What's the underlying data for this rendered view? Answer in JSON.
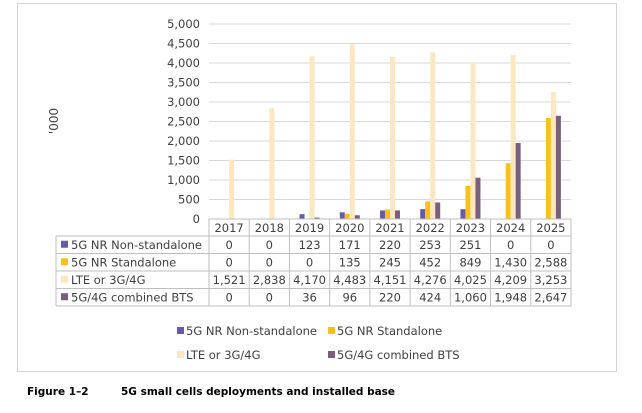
{
  "chart_data": {
    "type": "bar",
    "ylabel": "'000",
    "ylim": [
      0,
      5000
    ],
    "yticks": [
      "0",
      "500",
      "1,000",
      "1,500",
      "2,000",
      "2,500",
      "3,000",
      "3,500",
      "4,000",
      "4,500",
      "5,000"
    ],
    "categories": [
      "2017",
      "2018",
      "2019",
      "2020",
      "2021",
      "2022",
      "2023",
      "2024",
      "2025"
    ],
    "series": [
      {
        "name": "5G NR Non-standalone",
        "color": "#6b5aa3",
        "values": [
          0,
          0,
          123,
          171,
          220,
          253,
          251,
          0,
          0
        ],
        "labels": [
          "0",
          "0",
          "123",
          "171",
          "220",
          "253",
          "251",
          "0",
          "0"
        ]
      },
      {
        "name": "5G NR Standalone",
        "color": "#f9c119",
        "values": [
          0,
          0,
          0,
          135,
          245,
          452,
          849,
          1430,
          2588
        ],
        "labels": [
          "0",
          "0",
          "0",
          "135",
          "245",
          "452",
          "849",
          "1,430",
          "2,588"
        ]
      },
      {
        "name": "LTE or 3G/4G",
        "color": "#fbe8c0",
        "values": [
          1521,
          2838,
          4170,
          4483,
          4151,
          4276,
          4025,
          4209,
          3253
        ],
        "labels": [
          "1,521",
          "2,838",
          "4,170",
          "4,483",
          "4,151",
          "4,276",
          "4,025",
          "4,209",
          "3,253"
        ]
      },
      {
        "name": "5G/4G combined BTS",
        "color": "#7a5f7d",
        "values": [
          0,
          0,
          36,
          96,
          220,
          424,
          1060,
          1948,
          2647
        ],
        "labels": [
          "0",
          "0",
          "36",
          "96",
          "220",
          "424",
          "1,060",
          "1,948",
          "2,647"
        ]
      }
    ],
    "legend": "bottom"
  },
  "caption": {
    "number": "Figure 1–2",
    "title": "5G small cells deployments and installed base"
  }
}
